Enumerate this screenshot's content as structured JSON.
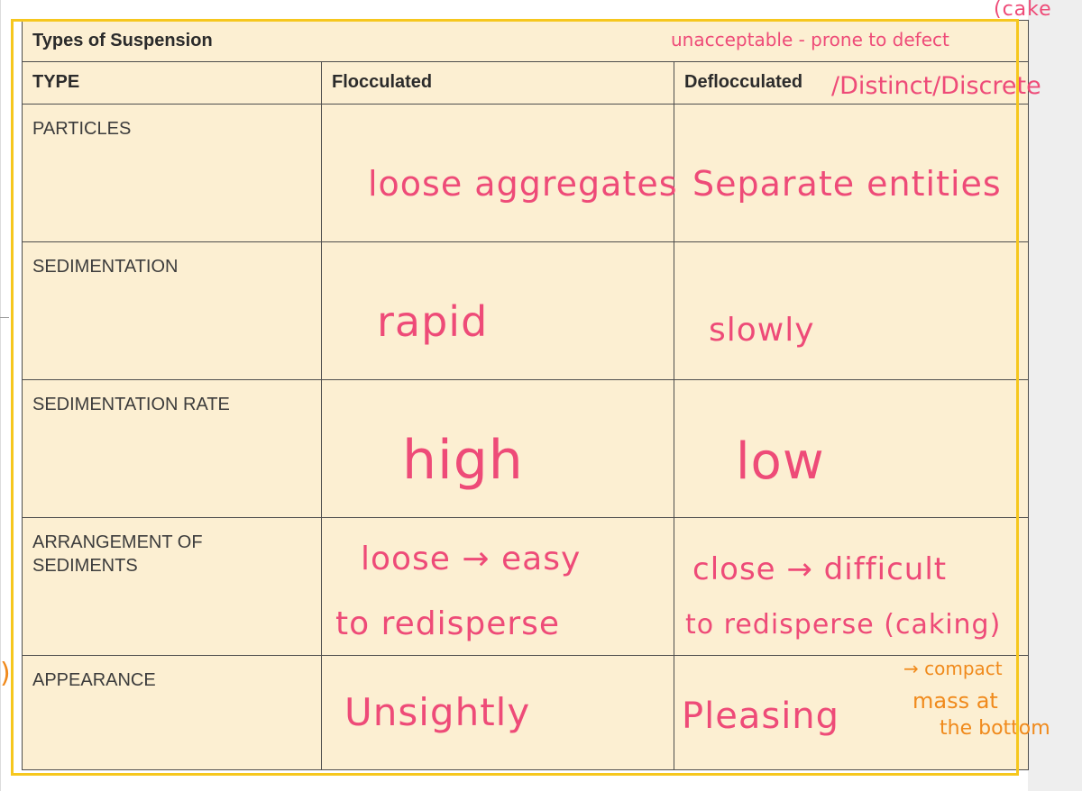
{
  "table": {
    "title": "Types of Suspension",
    "headers": [
      "TYPE",
      "Flocculated",
      "Deflocculated"
    ],
    "rows": [
      {
        "label": "PARTICLES",
        "flocculated": "loose aggregates",
        "deflocculated": "Separate entities"
      },
      {
        "label": "SEDIMENTATION",
        "flocculated": "rapid",
        "deflocculated": "slowly"
      },
      {
        "label": "SEDIMENTATION RATE",
        "flocculated": "high",
        "deflocculated": "low"
      },
      {
        "label": "ARRANGEMENT OF SEDIMENTS",
        "flocculated": [
          "loose → easy",
          "to redisperse"
        ],
        "deflocculated": [
          "close → difficult",
          "to redisperse (caking)"
        ]
      },
      {
        "label": "APPEARANCE",
        "flocculated": "Unsightly",
        "deflocculated": "Pleasing"
      }
    ]
  },
  "annotations": {
    "top_right_1": "(cake",
    "top_right_2": "unacceptable - prone to defect",
    "header_suffix": "/Distinct/Discrete",
    "caking_note_1": "→ compact",
    "caking_note_2": "mass at",
    "caking_note_3": "the bottom",
    "left_margin_mark": ")"
  },
  "colors": {
    "table_fill": "#fcefd2",
    "border": "#4d4d4d",
    "ink_pink": "#ee4b78",
    "ink_orange": "#f08a1c",
    "frame_yellow": "#f6c71e"
  }
}
